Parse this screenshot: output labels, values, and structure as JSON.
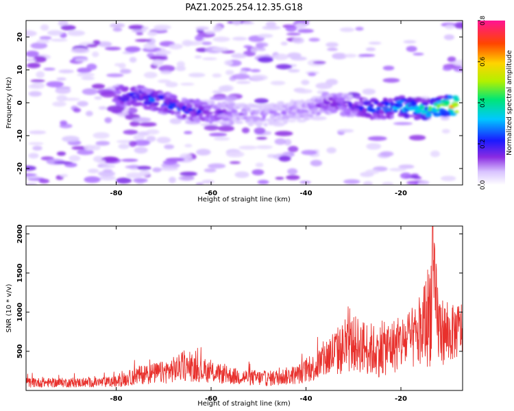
{
  "title": "PAZ1.2025.254.12.35.G18",
  "colors": {
    "snr_line": "#e8302c",
    "axis": "#000000",
    "background": "#ffffff"
  },
  "chart_data": [
    {
      "type": "heatmap",
      "name": "spectrogram",
      "xlabel": "Height of straight line (km)",
      "ylabel": "Frequency (Hz)",
      "xlim": [
        -99,
        -7
      ],
      "ylim": [
        -25,
        25
      ],
      "x_ticks": [
        -80,
        -60,
        -40,
        -20
      ],
      "x_tick_labels": [
        "-80",
        "-60",
        "-40",
        "-20"
      ],
      "y_ticks": [
        20,
        10,
        0,
        -10,
        -20
      ],
      "y_tick_labels": [
        "20",
        "10",
        "0",
        "-10",
        "-20"
      ],
      "colorbar": {
        "label": "Normalized spectral amplitude",
        "range": [
          0,
          0.8
        ],
        "ticks": [
          0,
          0.2,
          0.4,
          0.6,
          0.8
        ],
        "tick_labels": [
          "0.0",
          "0.2",
          "0.4",
          "0.6",
          "0.8"
        ]
      },
      "ridge": [
        {
          "x": -80,
          "freq": 2,
          "amp": 0.22
        },
        {
          "x": -75,
          "freq": 2,
          "amp": 0.25
        },
        {
          "x": -70,
          "freq": 0,
          "amp": 0.28
        },
        {
          "x": -65,
          "freq": -2,
          "amp": 0.25
        },
        {
          "x": -60,
          "freq": -3,
          "amp": 0.2
        },
        {
          "x": -55,
          "freq": -3,
          "amp": 0.12
        },
        {
          "x": -50,
          "freq": -4,
          "amp": 0.1
        },
        {
          "x": -45,
          "freq": -3,
          "amp": 0.1
        },
        {
          "x": -40,
          "freq": -2,
          "amp": 0.12
        },
        {
          "x": -35,
          "freq": 0,
          "amp": 0.18
        },
        {
          "x": -30,
          "freq": -1,
          "amp": 0.2
        },
        {
          "x": -25,
          "freq": -2,
          "amp": 0.3
        },
        {
          "x": -20,
          "freq": -1,
          "amp": 0.35
        },
        {
          "x": -15,
          "freq": -2,
          "amp": 0.4
        },
        {
          "x": -10,
          "freq": -1,
          "amp": 0.55
        },
        {
          "x": -8,
          "freq": -1,
          "amp": 0.7
        }
      ]
    },
    {
      "type": "line",
      "name": "snr",
      "xlabel": "Height of straight line (km)",
      "ylabel": "SNR (10 * v/v)",
      "xlim": [
        -99,
        -7
      ],
      "ylim": [
        0,
        2100
      ],
      "x_ticks": [
        -80,
        -60,
        -40,
        -20
      ],
      "x_tick_labels": [
        "-80",
        "-60",
        "-40",
        "-20"
      ],
      "y_ticks": [
        500,
        1000,
        1500,
        2000
      ],
      "y_tick_labels": [
        "500",
        "1000",
        "1500",
        "2000"
      ],
      "envelope": [
        {
          "x": -99,
          "mean": 100,
          "spread": 50
        },
        {
          "x": -85,
          "mean": 100,
          "spread": 50
        },
        {
          "x": -80,
          "mean": 110,
          "spread": 60
        },
        {
          "x": -75,
          "mean": 200,
          "spread": 100
        },
        {
          "x": -70,
          "mean": 230,
          "spread": 120
        },
        {
          "x": -66,
          "mean": 300,
          "spread": 150
        },
        {
          "x": -62,
          "mean": 250,
          "spread": 120
        },
        {
          "x": -55,
          "mean": 180,
          "spread": 90
        },
        {
          "x": -48,
          "mean": 150,
          "spread": 80
        },
        {
          "x": -42,
          "mean": 200,
          "spread": 100
        },
        {
          "x": -38,
          "mean": 300,
          "spread": 150
        },
        {
          "x": -35,
          "mean": 450,
          "spread": 250
        },
        {
          "x": -30,
          "mean": 600,
          "spread": 300
        },
        {
          "x": -25,
          "mean": 500,
          "spread": 280
        },
        {
          "x": -20,
          "mean": 600,
          "spread": 300
        },
        {
          "x": -16,
          "mean": 700,
          "spread": 350
        },
        {
          "x": -14,
          "mean": 1000,
          "spread": 600
        },
        {
          "x": -13.3,
          "mean": 1300,
          "spread": 700
        },
        {
          "x": -12,
          "mean": 800,
          "spread": 400
        },
        {
          "x": -10,
          "mean": 700,
          "spread": 300
        },
        {
          "x": -7,
          "mean": 800,
          "spread": 300
        }
      ],
      "peak": {
        "x": -13.3,
        "value": 2100
      }
    }
  ]
}
